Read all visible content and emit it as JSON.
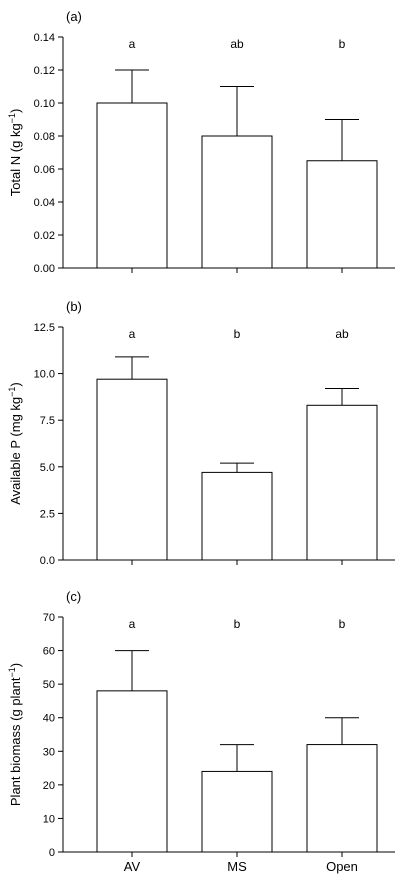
{
  "chart_data": [
    {
      "type": "bar",
      "panel_label": "(a)",
      "categories": [
        "AV",
        "MS",
        "Open"
      ],
      "values": [
        0.1,
        0.08,
        0.065
      ],
      "errors": [
        0.02,
        0.03,
        0.025
      ],
      "significance": [
        "a",
        "ab",
        "b"
      ],
      "ylabel": "Total N (g kg",
      "ylabel_sup": "−1",
      "ylabel_tail": ")",
      "ylim": [
        0,
        0.14
      ],
      "yticks": [
        "0.00",
        "0.02",
        "0.04",
        "0.06",
        "0.08",
        "0.10",
        "0.12",
        "0.14"
      ],
      "show_xticklabels": false
    },
    {
      "type": "bar",
      "panel_label": "(b)",
      "categories": [
        "AV",
        "MS",
        "Open"
      ],
      "values": [
        9.7,
        4.7,
        8.3
      ],
      "errors": [
        1.2,
        0.5,
        0.9
      ],
      "significance": [
        "a",
        "b",
        "ab"
      ],
      "ylabel": "Available P (mg kg",
      "ylabel_sup": "−1",
      "ylabel_tail": ")",
      "ylim": [
        0,
        12.5
      ],
      "yticks": [
        "0.0",
        "2.5",
        "5.0",
        "7.5",
        "10.0",
        "12.5"
      ],
      "show_xticklabels": false
    },
    {
      "type": "bar",
      "panel_label": "(c)",
      "categories": [
        "AV",
        "MS",
        "Open"
      ],
      "values": [
        48,
        24,
        32
      ],
      "errors": [
        12,
        8,
        8
      ],
      "significance": [
        "a",
        "b",
        "b"
      ],
      "ylabel": "Plant biomass (g plant",
      "ylabel_sup": "−1",
      "ylabel_tail": ")",
      "ylim": [
        0,
        70
      ],
      "yticks": [
        "0",
        "10",
        "20",
        "30",
        "40",
        "50",
        "60",
        "70"
      ],
      "show_xticklabels": true
    }
  ]
}
